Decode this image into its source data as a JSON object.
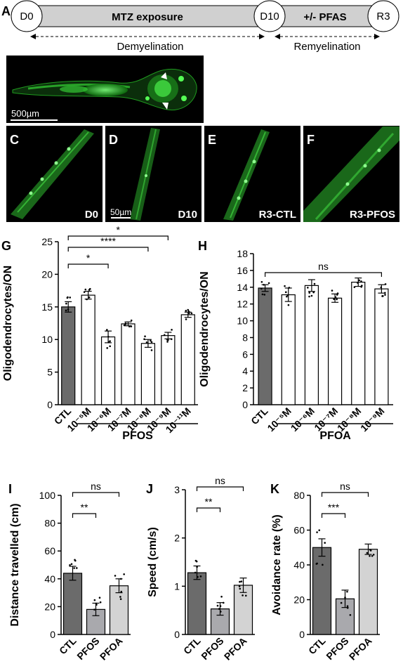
{
  "timeline": {
    "panel": "A",
    "nodes": [
      "D0",
      "D10",
      "R3"
    ],
    "segments": [
      "MTZ exposure",
      "+/- PFAS"
    ],
    "phases": [
      "Demyelination",
      "Remyelination"
    ]
  },
  "images": {
    "larva_scale": "500µm",
    "fiber_scale": "50µm",
    "panels": [
      {
        "letter": "C",
        "label": "D0"
      },
      {
        "letter": "D",
        "label": "D10"
      },
      {
        "letter": "E",
        "label": "R3-CTL"
      },
      {
        "letter": "F",
        "label": "R3-PFOS"
      }
    ]
  },
  "colors": {
    "dark_bar": "#6b6b6b",
    "mid_bar": "#a9a9ad",
    "light_bar": "#d3d3d3",
    "white_bar": "#ffffff",
    "timeline_fill": "#d0d0d0",
    "fluorescence": "#3fd43f"
  },
  "chart_data": [
    {
      "panel": "G",
      "type": "bar",
      "ylabel": "Oligodendrocytes/ON",
      "ylim": [
        0,
        25
      ],
      "yticks": [
        0,
        5,
        10,
        15,
        20,
        25
      ],
      "categories": [
        "CTL",
        "10⁻⁵M",
        "10⁻⁶M",
        "10⁻⁷M",
        "10⁻⁸M",
        "10⁻⁹M",
        "10⁻¹¹M"
      ],
      "values": [
        15.0,
        16.8,
        10.4,
        12.4,
        9.4,
        10.6,
        13.8
      ],
      "errors": [
        0.8,
        0.6,
        0.9,
        0.3,
        0.6,
        0.5,
        0.4
      ],
      "group_label": "PFOS",
      "significance": [
        {
          "from": 0,
          "to": 2,
          "label": "*"
        },
        {
          "from": 0,
          "to": 4,
          "label": "****"
        },
        {
          "from": 0,
          "to": 5,
          "label": "*"
        }
      ]
    },
    {
      "panel": "H",
      "type": "bar",
      "ylabel": "Oligodendrocytes/ON",
      "ylim": [
        0,
        18
      ],
      "yticks": [
        0,
        2,
        4,
        6,
        8,
        10,
        12,
        14,
        16,
        18
      ],
      "categories": [
        "CTL",
        "10⁻⁵M",
        "10⁻⁶M",
        "10⁻⁷M",
        "10⁻⁸M",
        "10⁻⁹M"
      ],
      "values": [
        13.9,
        13.1,
        14.2,
        12.7,
        14.6,
        13.8
      ],
      "errors": [
        0.4,
        0.8,
        0.7,
        0.5,
        0.5,
        0.5
      ],
      "group_label": "PFOA",
      "significance": [
        {
          "from": 0,
          "to": 5,
          "label": "ns"
        }
      ]
    },
    {
      "panel": "I",
      "type": "bar",
      "ylabel": "Distance travelled (cm)",
      "ylim": [
        0,
        100
      ],
      "yticks": [
        0,
        20,
        40,
        60,
        80,
        100
      ],
      "categories": [
        "CTL",
        "PFOS",
        "PFOA"
      ],
      "values": [
        44,
        18,
        35
      ],
      "errors": [
        5,
        4.5,
        5
      ],
      "significance": [
        {
          "from": 0,
          "to": 1,
          "label": "**"
        },
        {
          "from": 0,
          "to": 2,
          "label": "ns"
        }
      ]
    },
    {
      "panel": "J",
      "type": "bar",
      "ylabel": "Speed (cm/s)",
      "ylim": [
        0,
        3
      ],
      "yticks": [
        0,
        1,
        2,
        3
      ],
      "categories": [
        "CTL",
        "PFOS",
        "PFOA"
      ],
      "values": [
        1.28,
        0.53,
        1.02
      ],
      "errors": [
        0.14,
        0.13,
        0.15
      ],
      "significance": [
        {
          "from": 0,
          "to": 1,
          "label": "**"
        },
        {
          "from": 0,
          "to": 2,
          "label": "ns"
        }
      ]
    },
    {
      "panel": "K",
      "type": "bar",
      "ylabel": "Avoidance rate (%)",
      "ylim": [
        0,
        80
      ],
      "yticks": [
        0,
        20,
        40,
        60,
        80
      ],
      "categories": [
        "CTL",
        "PFOS",
        "PFOA"
      ],
      "values": [
        50,
        20.5,
        49
      ],
      "errors": [
        5,
        5,
        3
      ],
      "significance": [
        {
          "from": 0,
          "to": 1,
          "label": "***"
        },
        {
          "from": 0,
          "to": 2,
          "label": "ns"
        }
      ]
    }
  ]
}
